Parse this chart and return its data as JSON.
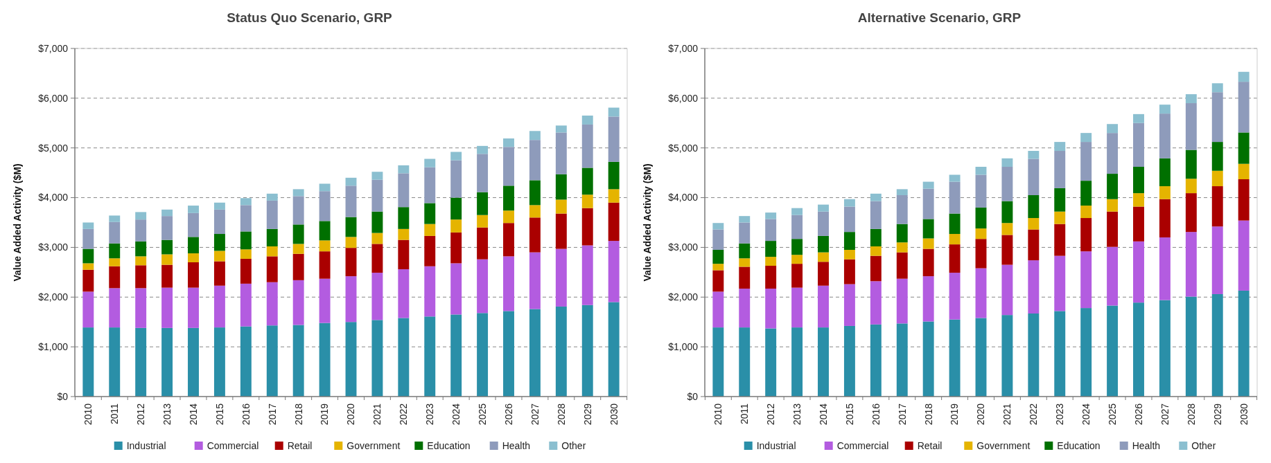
{
  "chart_data": [
    {
      "type": "bar",
      "title": "Status Quo Scenario, GRP",
      "ylabel": "Value Added Activity ($M)",
      "stacked": true,
      "grid": "y",
      "legend": "bottom",
      "categories": [
        "2010",
        "2011",
        "2012",
        "2013",
        "2014",
        "2015",
        "2016",
        "2017",
        "2018",
        "2019",
        "2020",
        "2021",
        "2022",
        "2023",
        "2024",
        "2025",
        "2026",
        "2027",
        "2028",
        "2029",
        "2030"
      ],
      "ylim": [
        0,
        7000
      ],
      "yticks": [
        {
          "value": 0,
          "label": "$0"
        },
        {
          "value": 1000,
          "label": "$1,000"
        },
        {
          "value": 2000,
          "label": "$2,000"
        },
        {
          "value": 3000,
          "label": "$3,000"
        },
        {
          "value": 4000,
          "label": "$4,000"
        },
        {
          "value": 5000,
          "label": "$5,000"
        },
        {
          "value": 6000,
          "label": "$6,000"
        },
        {
          "value": 7000,
          "label": "$7,000"
        }
      ],
      "series": [
        {
          "name": "Industrial",
          "color": "#2a8fa8",
          "values": [
            1390,
            1390,
            1380,
            1380,
            1380,
            1390,
            1410,
            1430,
            1440,
            1480,
            1500,
            1540,
            1580,
            1610,
            1650,
            1680,
            1720,
            1760,
            1810,
            1840,
            1900
          ]
        },
        {
          "name": "Commercial",
          "color": "#b35ce0",
          "values": [
            720,
            790,
            800,
            810,
            810,
            840,
            860,
            870,
            900,
            890,
            920,
            950,
            980,
            1010,
            1030,
            1080,
            1100,
            1140,
            1160,
            1200,
            1230
          ]
        },
        {
          "name": "Retail",
          "color": "#aa0000",
          "values": [
            440,
            440,
            460,
            460,
            510,
            490,
            500,
            520,
            530,
            550,
            570,
            580,
            590,
            610,
            620,
            640,
            670,
            700,
            710,
            750,
            770
          ]
        },
        {
          "name": "Government",
          "color": "#e5b400",
          "values": [
            130,
            160,
            180,
            210,
            180,
            210,
            190,
            200,
            200,
            220,
            220,
            220,
            220,
            240,
            260,
            250,
            250,
            250,
            280,
            270,
            270
          ]
        },
        {
          "name": "Education",
          "color": "#007000",
          "values": [
            290,
            300,
            300,
            290,
            330,
            340,
            360,
            350,
            390,
            390,
            400,
            430,
            440,
            420,
            440,
            460,
            500,
            500,
            510,
            540,
            550
          ]
        },
        {
          "name": "Health",
          "color": "#8e9bbb",
          "values": [
            400,
            430,
            440,
            480,
            480,
            490,
            530,
            570,
            570,
            600,
            630,
            640,
            680,
            720,
            750,
            770,
            780,
            810,
            840,
            870,
            910
          ]
        },
        {
          "name": "Other",
          "color": "#8bbfd0",
          "values": [
            130,
            130,
            150,
            130,
            150,
            140,
            140,
            140,
            140,
            150,
            160,
            160,
            160,
            170,
            170,
            160,
            170,
            180,
            140,
            180,
            180
          ]
        }
      ]
    },
    {
      "type": "bar",
      "title": "Alternative Scenario, GRP",
      "ylabel": "Value Added Activity ($M)",
      "stacked": true,
      "grid": "y",
      "legend": "bottom",
      "categories": [
        "2010",
        "2011",
        "2012",
        "2013",
        "2014",
        "2015",
        "2016",
        "2017",
        "2018",
        "2019",
        "2020",
        "2021",
        "2022",
        "2023",
        "2024",
        "2025",
        "2026",
        "2027",
        "2028",
        "2029",
        "2030"
      ],
      "ylim": [
        0,
        7000
      ],
      "yticks": [
        {
          "value": 0,
          "label": "$0"
        },
        {
          "value": 1000,
          "label": "$1,000"
        },
        {
          "value": 2000,
          "label": "$2,000"
        },
        {
          "value": 3000,
          "label": "$3,000"
        },
        {
          "value": 4000,
          "label": "$4,000"
        },
        {
          "value": 5000,
          "label": "$5,000"
        },
        {
          "value": 6000,
          "label": "$6,000"
        },
        {
          "value": 7000,
          "label": "$7,000"
        }
      ],
      "series": [
        {
          "name": "Industrial",
          "color": "#2a8fa8",
          "values": [
            1390,
            1390,
            1370,
            1390,
            1390,
            1420,
            1450,
            1470,
            1510,
            1550,
            1580,
            1640,
            1670,
            1720,
            1780,
            1830,
            1890,
            1940,
            2010,
            2060,
            2130
          ]
        },
        {
          "name": "Commercial",
          "color": "#b35ce0",
          "values": [
            720,
            780,
            800,
            800,
            840,
            840,
            870,
            900,
            910,
            940,
            1000,
            1010,
            1070,
            1110,
            1140,
            1180,
            1230,
            1260,
            1300,
            1360,
            1410
          ]
        },
        {
          "name": "Retail",
          "color": "#aa0000",
          "values": [
            430,
            440,
            460,
            480,
            480,
            500,
            510,
            530,
            550,
            570,
            590,
            600,
            620,
            640,
            670,
            710,
            700,
            770,
            780,
            810,
            830
          ]
        },
        {
          "name": "Government",
          "color": "#e5b400",
          "values": [
            130,
            170,
            180,
            180,
            190,
            190,
            190,
            200,
            210,
            210,
            210,
            240,
            230,
            250,
            250,
            250,
            270,
            260,
            290,
            310,
            310
          ]
        },
        {
          "name": "Education",
          "color": "#007000",
          "values": [
            280,
            300,
            320,
            320,
            330,
            360,
            350,
            370,
            390,
            410,
            420,
            440,
            460,
            470,
            500,
            510,
            530,
            560,
            580,
            580,
            630
          ]
        },
        {
          "name": "Health",
          "color": "#8e9bbb",
          "values": [
            410,
            420,
            440,
            480,
            490,
            510,
            560,
            580,
            610,
            640,
            660,
            690,
            730,
            750,
            780,
            820,
            880,
            900,
            940,
            1000,
            1020
          ]
        },
        {
          "name": "Other",
          "color": "#8bbfd0",
          "values": [
            130,
            130,
            130,
            140,
            140,
            150,
            150,
            120,
            140,
            140,
            160,
            170,
            160,
            180,
            180,
            180,
            180,
            180,
            180,
            180,
            200
          ]
        }
      ]
    }
  ]
}
